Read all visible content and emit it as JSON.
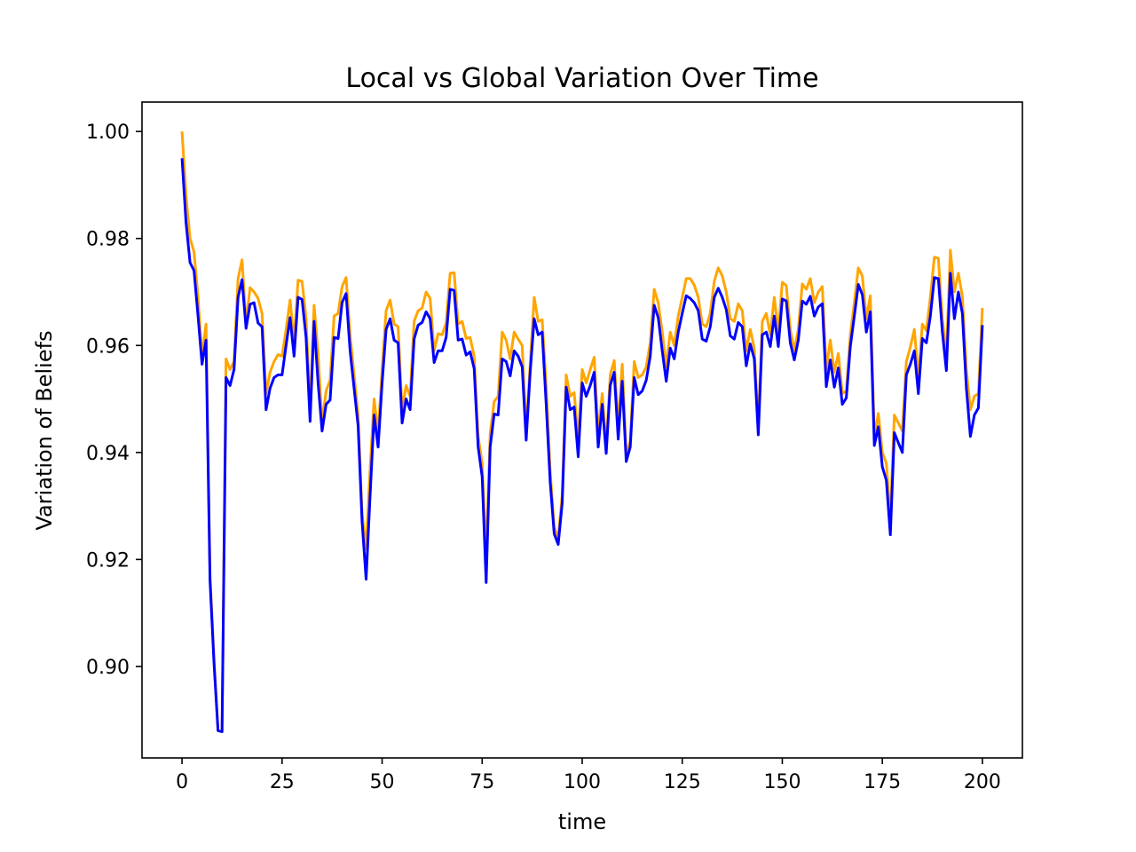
{
  "chart_data": {
    "type": "line",
    "title": "Local vs Global Variation Over Time",
    "xlabel": "time",
    "ylabel": "Variation of Beliefs",
    "xlim": [
      -10,
      210
    ],
    "ylim": [
      0.8829,
      1.0055
    ],
    "xticks": [
      0,
      25,
      50,
      75,
      100,
      125,
      150,
      175,
      200
    ],
    "yticks": [
      0.9,
      0.92,
      0.94,
      0.96,
      0.98,
      1.0
    ],
    "xtick_labels": [
      "0",
      "25",
      "50",
      "75",
      "100",
      "125",
      "150",
      "175",
      "200"
    ],
    "ytick_labels": [
      "0.90",
      "0.92",
      "0.94",
      "0.96",
      "0.98",
      "1.00"
    ],
    "grid": false,
    "legend": "none",
    "series": [
      {
        "color": "#ffa500",
        "x": [
          0,
          1,
          2,
          3,
          4,
          5,
          6,
          7,
          8,
          9,
          10,
          11,
          12,
          13,
          14,
          15,
          16,
          17,
          18,
          19,
          20,
          21,
          22,
          23,
          24,
          25,
          26,
          27,
          28,
          29,
          30,
          31,
          32,
          33,
          34,
          35,
          36,
          37,
          38,
          39,
          40,
          41,
          42,
          43,
          44,
          45,
          46,
          47,
          48,
          49,
          50,
          51,
          52,
          53,
          54,
          55,
          56,
          57,
          58,
          59,
          60,
          61,
          62,
          63,
          64,
          65,
          66,
          67,
          68,
          69,
          70,
          71,
          72,
          73,
          74,
          75,
          76,
          77,
          78,
          79,
          80,
          81,
          82,
          83,
          84,
          85,
          86,
          87,
          88,
          89,
          90,
          91,
          92,
          93,
          94,
          95,
          96,
          97,
          98,
          99,
          100,
          101,
          102,
          103,
          104,
          105,
          106,
          107,
          108,
          109,
          110,
          111,
          112,
          113,
          114,
          115,
          116,
          117,
          118,
          119,
          120,
          121,
          122,
          123,
          124,
          125,
          126,
          127,
          128,
          129,
          130,
          131,
          132,
          133,
          134,
          135,
          136,
          137,
          138,
          139,
          140,
          141,
          142,
          143,
          144,
          145,
          146,
          147,
          148,
          149,
          150,
          151,
          152,
          153,
          154,
          155,
          156,
          157,
          158,
          159,
          160,
          161,
          162,
          163,
          164,
          165,
          166,
          167,
          168,
          169,
          170,
          171,
          172,
          173,
          174,
          175,
          176,
          177,
          178,
          179,
          180,
          181,
          182,
          183,
          184,
          185,
          186,
          187,
          188,
          189,
          190,
          191,
          192,
          193,
          194,
          195,
          196,
          197,
          198,
          199,
          200
        ],
        "y": [
          1.0,
          0.988,
          0.98,
          0.9775,
          0.969,
          0.958,
          0.964,
          0.917,
          0.9015,
          0.888,
          0.8878,
          0.9575,
          0.9555,
          0.957,
          0.9725,
          0.976,
          0.964,
          0.9708,
          0.97,
          0.9688,
          0.966,
          0.951,
          0.955,
          0.957,
          0.9583,
          0.958,
          0.963,
          0.9685,
          0.9605,
          0.9722,
          0.972,
          0.965,
          0.948,
          0.9675,
          0.9585,
          0.9455,
          0.9515,
          0.9535,
          0.9655,
          0.966,
          0.971,
          0.9727,
          0.962,
          0.9545,
          0.947,
          0.9285,
          0.922,
          0.937,
          0.95,
          0.9435,
          0.9555,
          0.9665,
          0.9685,
          0.964,
          0.9635,
          0.948,
          0.9525,
          0.9505,
          0.9645,
          0.9665,
          0.967,
          0.97,
          0.9688,
          0.959,
          0.9622,
          0.962,
          0.9642,
          0.9735,
          0.9736,
          0.964,
          0.9645,
          0.9613,
          0.9615,
          0.958,
          0.943,
          0.938,
          0.9205,
          0.9435,
          0.9495,
          0.9505,
          0.9625,
          0.961,
          0.9575,
          0.9625,
          0.9612,
          0.96,
          0.944,
          0.9565,
          0.969,
          0.9645,
          0.9648,
          0.9525,
          0.9365,
          0.926,
          0.924,
          0.932,
          0.9545,
          0.9505,
          0.9512,
          0.942,
          0.9555,
          0.953,
          0.9555,
          0.9578,
          0.9435,
          0.951,
          0.941,
          0.9545,
          0.9572,
          0.945,
          0.9565,
          0.94,
          0.942,
          0.957,
          0.954,
          0.9545,
          0.956,
          0.9605,
          0.9705,
          0.968,
          0.9625,
          0.956,
          0.9625,
          0.96,
          0.9655,
          0.969,
          0.9725,
          0.9725,
          0.9713,
          0.969,
          0.964,
          0.9635,
          0.966,
          0.972,
          0.9745,
          0.973,
          0.97,
          0.965,
          0.9645,
          0.9678,
          0.9665,
          0.959,
          0.963,
          0.9595,
          0.945,
          0.9645,
          0.966,
          0.962,
          0.969,
          0.9625,
          0.9718,
          0.9712,
          0.963,
          0.959,
          0.963,
          0.9715,
          0.9705,
          0.9725,
          0.968,
          0.97,
          0.971,
          0.9555,
          0.961,
          0.955,
          0.9585,
          0.951,
          0.9515,
          0.962,
          0.968,
          0.9745,
          0.973,
          0.965,
          0.9693,
          0.943,
          0.9473,
          0.94,
          0.938,
          0.9275,
          0.947,
          0.9455,
          0.944,
          0.957,
          0.9597,
          0.963,
          0.954,
          0.964,
          0.9628,
          0.969,
          0.9765,
          0.9763,
          0.965,
          0.958,
          0.9778,
          0.97,
          0.9735,
          0.9692,
          0.9555,
          0.948,
          0.9505,
          0.951,
          0.967
        ]
      },
      {
        "color": "#0000ff",
        "x": [
          0,
          1,
          2,
          3,
          4,
          5,
          6,
          7,
          8,
          9,
          10,
          11,
          12,
          13,
          14,
          15,
          16,
          17,
          18,
          19,
          20,
          21,
          22,
          23,
          24,
          25,
          26,
          27,
          28,
          29,
          30,
          31,
          32,
          33,
          34,
          35,
          36,
          37,
          38,
          39,
          40,
          41,
          42,
          43,
          44,
          45,
          46,
          47,
          48,
          49,
          50,
          51,
          52,
          53,
          54,
          55,
          56,
          57,
          58,
          59,
          60,
          61,
          62,
          63,
          64,
          65,
          66,
          67,
          68,
          69,
          70,
          71,
          72,
          73,
          74,
          75,
          76,
          77,
          78,
          79,
          80,
          81,
          82,
          83,
          84,
          85,
          86,
          87,
          88,
          89,
          90,
          91,
          92,
          93,
          94,
          95,
          96,
          97,
          98,
          99,
          100,
          101,
          102,
          103,
          104,
          105,
          106,
          107,
          108,
          109,
          110,
          111,
          112,
          113,
          114,
          115,
          116,
          117,
          118,
          119,
          120,
          121,
          122,
          123,
          124,
          125,
          126,
          127,
          128,
          129,
          130,
          131,
          132,
          133,
          134,
          135,
          136,
          137,
          138,
          139,
          140,
          141,
          142,
          143,
          144,
          145,
          146,
          147,
          148,
          149,
          150,
          151,
          152,
          153,
          154,
          155,
          156,
          157,
          158,
          159,
          160,
          161,
          162,
          163,
          164,
          165,
          166,
          167,
          168,
          169,
          170,
          171,
          172,
          173,
          174,
          175,
          176,
          177,
          178,
          179,
          180,
          181,
          182,
          183,
          184,
          185,
          186,
          187,
          188,
          189,
          190,
          191,
          192,
          193,
          194,
          195,
          196,
          197,
          198,
          199,
          200
        ],
        "y": [
          0.995,
          0.983,
          0.9755,
          0.974,
          0.9655,
          0.9565,
          0.961,
          0.916,
          0.9005,
          0.888,
          0.8878,
          0.954,
          0.9525,
          0.9555,
          0.969,
          0.9723,
          0.9632,
          0.9677,
          0.968,
          0.9642,
          0.9635,
          0.948,
          0.952,
          0.954,
          0.9545,
          0.9545,
          0.96,
          0.9652,
          0.958,
          0.969,
          0.9686,
          0.9615,
          0.9458,
          0.9645,
          0.953,
          0.944,
          0.949,
          0.9498,
          0.9615,
          0.9613,
          0.968,
          0.9697,
          0.959,
          0.952,
          0.945,
          0.927,
          0.9163,
          0.932,
          0.947,
          0.941,
          0.953,
          0.963,
          0.965,
          0.961,
          0.9605,
          0.9455,
          0.95,
          0.948,
          0.9612,
          0.9638,
          0.9643,
          0.9663,
          0.965,
          0.9568,
          0.959,
          0.959,
          0.9615,
          0.9705,
          0.9703,
          0.961,
          0.9612,
          0.9582,
          0.9588,
          0.9557,
          0.941,
          0.9355,
          0.9157,
          0.941,
          0.9472,
          0.947,
          0.9575,
          0.957,
          0.9543,
          0.959,
          0.958,
          0.956,
          0.9423,
          0.955,
          0.965,
          0.962,
          0.9625,
          0.949,
          0.9345,
          0.9248,
          0.9228,
          0.9305,
          0.9522,
          0.948,
          0.9485,
          0.9392,
          0.953,
          0.9505,
          0.9525,
          0.955,
          0.941,
          0.949,
          0.9398,
          0.9525,
          0.955,
          0.9425,
          0.9533,
          0.9383,
          0.941,
          0.954,
          0.9508,
          0.9515,
          0.9535,
          0.958,
          0.9675,
          0.9652,
          0.959,
          0.9533,
          0.9595,
          0.9575,
          0.9625,
          0.966,
          0.9693,
          0.9688,
          0.968,
          0.9665,
          0.9612,
          0.9608,
          0.9635,
          0.969,
          0.9707,
          0.969,
          0.9667,
          0.9618,
          0.9612,
          0.9643,
          0.9635,
          0.9562,
          0.9603,
          0.9575,
          0.9433,
          0.962,
          0.9625,
          0.9598,
          0.9655,
          0.9598,
          0.9687,
          0.9683,
          0.9605,
          0.9573,
          0.961,
          0.9683,
          0.9677,
          0.9692,
          0.9655,
          0.9672,
          0.9678,
          0.9523,
          0.9573,
          0.9522,
          0.9558,
          0.949,
          0.9502,
          0.9598,
          0.9655,
          0.9714,
          0.9695,
          0.9625,
          0.9663,
          0.9413,
          0.9448,
          0.9373,
          0.9348,
          0.9246,
          0.9437,
          0.9418,
          0.94,
          0.9545,
          0.9565,
          0.959,
          0.951,
          0.9613,
          0.9605,
          0.9655,
          0.9727,
          0.9725,
          0.9625,
          0.9553,
          0.9735,
          0.965,
          0.97,
          0.966,
          0.952,
          0.943,
          0.947,
          0.9483,
          0.9638
        ]
      }
    ]
  }
}
